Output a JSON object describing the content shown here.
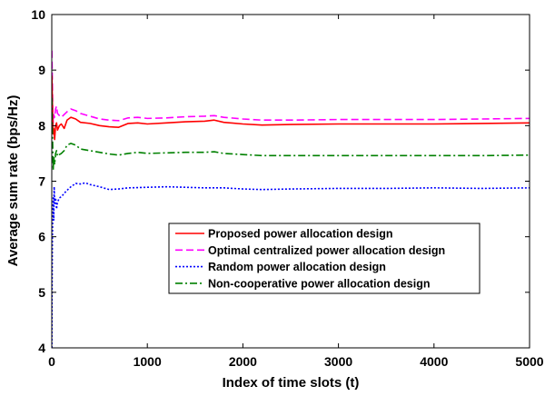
{
  "chart_data": {
    "type": "line",
    "xlabel": "Index of time slots (t)",
    "ylabel": "Average sum rate (bps/Hz)",
    "xlim": [
      0,
      5000
    ],
    "ylim": [
      4,
      10
    ],
    "xticks": [
      0,
      1000,
      2000,
      3000,
      4000,
      5000
    ],
    "yticks": [
      4,
      5,
      6,
      7,
      8,
      9,
      10
    ],
    "grid": false,
    "legend_position": "center-right",
    "series": [
      {
        "name": "Proposed power allocation design",
        "color": "#ff0000",
        "dash": "solid",
        "points": [
          [
            1,
            8.9
          ],
          [
            5,
            8.55
          ],
          [
            10,
            8.1
          ],
          [
            15,
            7.85
          ],
          [
            20,
            7.95
          ],
          [
            30,
            7.75
          ],
          [
            40,
            8.0
          ],
          [
            50,
            8.05
          ],
          [
            60,
            7.92
          ],
          [
            80,
            8.0
          ],
          [
            100,
            8.03
          ],
          [
            130,
            7.95
          ],
          [
            160,
            8.1
          ],
          [
            200,
            8.15
          ],
          [
            250,
            8.12
          ],
          [
            300,
            8.06
          ],
          [
            400,
            8.04
          ],
          [
            500,
            8.0
          ],
          [
            600,
            7.98
          ],
          [
            700,
            7.97
          ],
          [
            800,
            8.04
          ],
          [
            900,
            8.05
          ],
          [
            1000,
            8.03
          ],
          [
            1200,
            8.05
          ],
          [
            1400,
            8.07
          ],
          [
            1600,
            8.08
          ],
          [
            1700,
            8.1
          ],
          [
            1800,
            8.06
          ],
          [
            2000,
            8.03
          ],
          [
            2200,
            8.01
          ],
          [
            2500,
            8.02
          ],
          [
            3000,
            8.03
          ],
          [
            3500,
            8.03
          ],
          [
            4000,
            8.03
          ],
          [
            4500,
            8.04
          ],
          [
            5000,
            8.05
          ]
        ]
      },
      {
        "name": "Optimal centralized power allocation design",
        "color": "#ff00ff",
        "dash": "dashed",
        "points": [
          [
            1,
            9.35
          ],
          [
            5,
            8.9
          ],
          [
            10,
            8.3
          ],
          [
            15,
            8.05
          ],
          [
            20,
            8.2
          ],
          [
            30,
            8.15
          ],
          [
            40,
            8.3
          ],
          [
            50,
            8.35
          ],
          [
            60,
            8.22
          ],
          [
            80,
            8.18
          ],
          [
            100,
            8.15
          ],
          [
            130,
            8.2
          ],
          [
            160,
            8.25
          ],
          [
            200,
            8.3
          ],
          [
            250,
            8.27
          ],
          [
            300,
            8.22
          ],
          [
            400,
            8.17
          ],
          [
            500,
            8.12
          ],
          [
            600,
            8.1
          ],
          [
            700,
            8.09
          ],
          [
            800,
            8.14
          ],
          [
            900,
            8.15
          ],
          [
            1000,
            8.13
          ],
          [
            1200,
            8.14
          ],
          [
            1400,
            8.16
          ],
          [
            1600,
            8.17
          ],
          [
            1700,
            8.18
          ],
          [
            1800,
            8.15
          ],
          [
            2000,
            8.12
          ],
          [
            2200,
            8.1
          ],
          [
            2500,
            8.1
          ],
          [
            3000,
            8.11
          ],
          [
            3500,
            8.11
          ],
          [
            4000,
            8.11
          ],
          [
            4500,
            8.12
          ],
          [
            5000,
            8.13
          ]
        ]
      },
      {
        "name": "Random power allocation design",
        "color": "#0000ff",
        "dash": "dotted",
        "points": [
          [
            1,
            4.0
          ],
          [
            3,
            5.0
          ],
          [
            6,
            5.9
          ],
          [
            10,
            6.4
          ],
          [
            15,
            6.7
          ],
          [
            20,
            6.3
          ],
          [
            25,
            6.9
          ],
          [
            30,
            6.6
          ],
          [
            40,
            6.7
          ],
          [
            50,
            6.5
          ],
          [
            60,
            6.62
          ],
          [
            80,
            6.7
          ],
          [
            100,
            6.72
          ],
          [
            150,
            6.82
          ],
          [
            200,
            6.9
          ],
          [
            250,
            6.96
          ],
          [
            300,
            6.95
          ],
          [
            350,
            6.97
          ],
          [
            400,
            6.94
          ],
          [
            500,
            6.9
          ],
          [
            600,
            6.85
          ],
          [
            700,
            6.86
          ],
          [
            800,
            6.88
          ],
          [
            1000,
            6.89
          ],
          [
            1200,
            6.9
          ],
          [
            1400,
            6.89
          ],
          [
            1600,
            6.88
          ],
          [
            1800,
            6.88
          ],
          [
            2000,
            6.86
          ],
          [
            2200,
            6.85
          ],
          [
            2500,
            6.86
          ],
          [
            3000,
            6.87
          ],
          [
            3500,
            6.87
          ],
          [
            4000,
            6.88
          ],
          [
            4500,
            6.87
          ],
          [
            5000,
            6.88
          ]
        ]
      },
      {
        "name": "Non-cooperative power allocation design",
        "color": "#008000",
        "dash": "dashdot",
        "points": [
          [
            1,
            8.5
          ],
          [
            5,
            8.0
          ],
          [
            10,
            7.6
          ],
          [
            15,
            7.2
          ],
          [
            20,
            7.45
          ],
          [
            30,
            7.3
          ],
          [
            40,
            7.5
          ],
          [
            50,
            7.55
          ],
          [
            60,
            7.45
          ],
          [
            80,
            7.48
          ],
          [
            100,
            7.5
          ],
          [
            130,
            7.55
          ],
          [
            160,
            7.65
          ],
          [
            200,
            7.68
          ],
          [
            250,
            7.65
          ],
          [
            300,
            7.58
          ],
          [
            400,
            7.55
          ],
          [
            500,
            7.52
          ],
          [
            600,
            7.49
          ],
          [
            700,
            7.47
          ],
          [
            800,
            7.5
          ],
          [
            900,
            7.52
          ],
          [
            1000,
            7.5
          ],
          [
            1200,
            7.51
          ],
          [
            1400,
            7.52
          ],
          [
            1600,
            7.52
          ],
          [
            1700,
            7.53
          ],
          [
            1800,
            7.5
          ],
          [
            2000,
            7.48
          ],
          [
            2200,
            7.46
          ],
          [
            2500,
            7.46
          ],
          [
            3000,
            7.46
          ],
          [
            3500,
            7.46
          ],
          [
            4000,
            7.46
          ],
          [
            4500,
            7.46
          ],
          [
            5000,
            7.47
          ]
        ]
      }
    ]
  }
}
